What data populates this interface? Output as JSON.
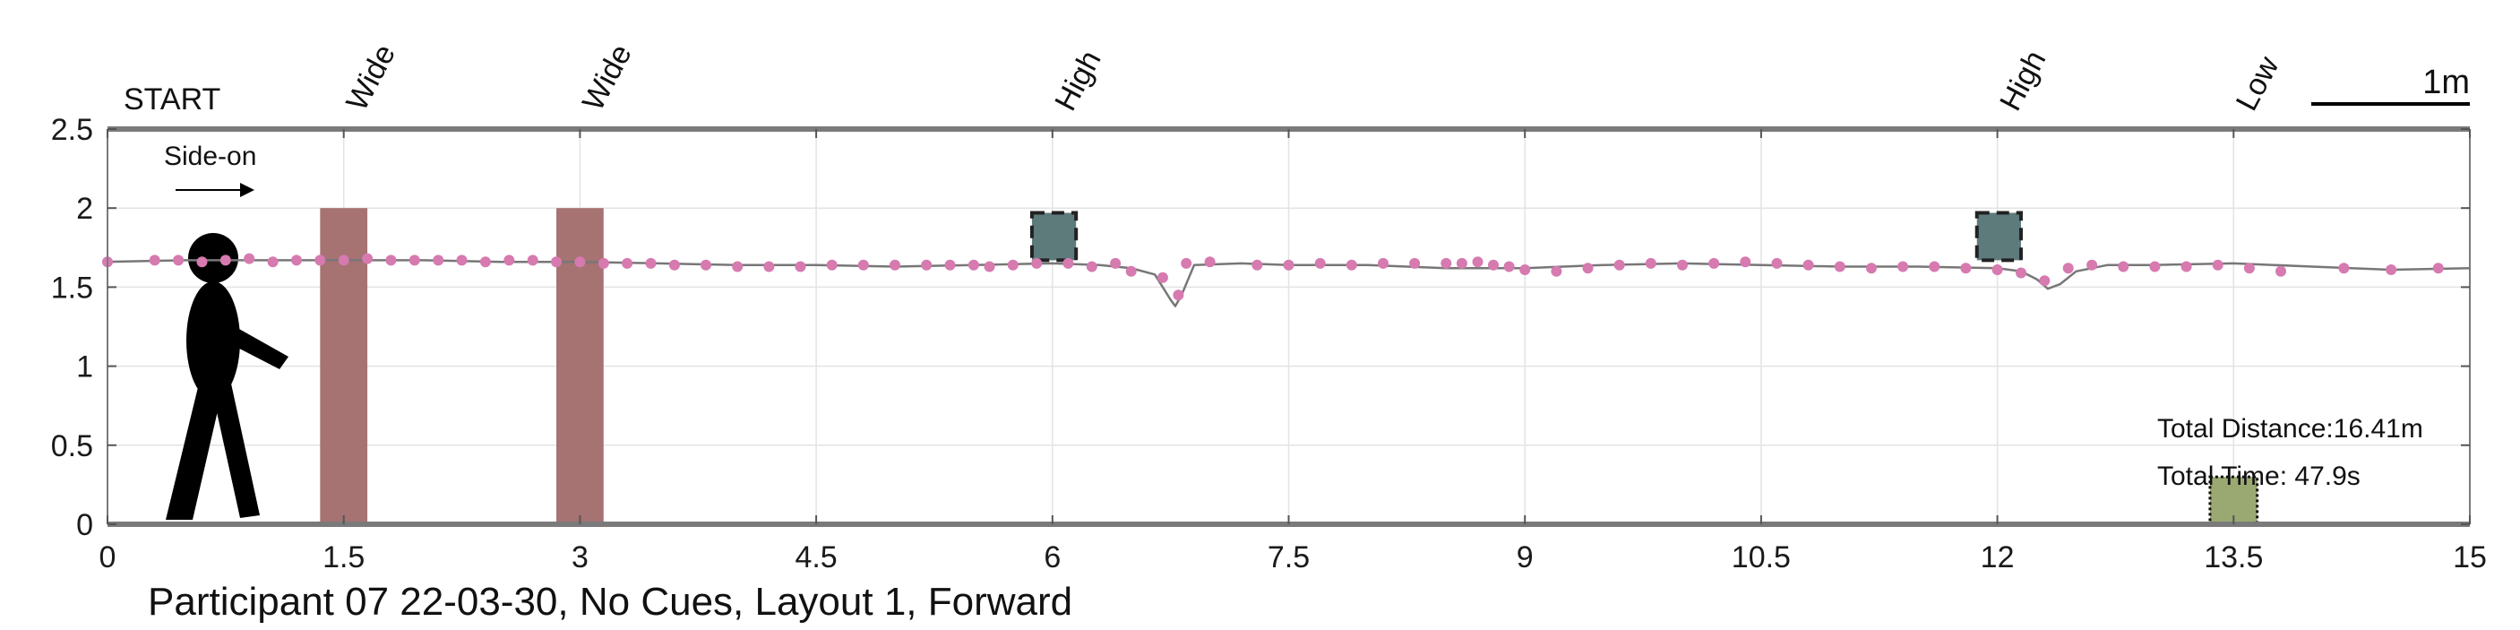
{
  "chart_data": {
    "type": "line",
    "title": "Participant 07 22-03-30, No Cues, Layout 1, Forward",
    "xlim": [
      0,
      15
    ],
    "ylim": [
      0,
      2.5
    ],
    "x_ticks": [
      0,
      1.5,
      3,
      4.5,
      6,
      7.5,
      9,
      10.5,
      12,
      13.5,
      15
    ],
    "x_tick_labels": [
      "0",
      "1.5",
      "3",
      "4.5",
      "6",
      "7.5",
      "9",
      "10.5",
      "12",
      "13.5",
      "15"
    ],
    "y_ticks": [
      0,
      0.5,
      1,
      1.5,
      2,
      2.5
    ],
    "y_tick_labels": [
      "0",
      "0.5",
      "1",
      "1.5",
      "2",
      "2.5"
    ],
    "grid": true,
    "start_label": "START",
    "direction_label": "Side-on",
    "scale_bar_label": "1m",
    "summary": {
      "distance": "Total Distance:16.41m",
      "time": "Total Time: 47.9s"
    },
    "obstacle_labels": [
      {
        "x": 1.5,
        "text": "Wide"
      },
      {
        "x": 3.0,
        "text": "Wide"
      },
      {
        "x": 6.0,
        "text": "High"
      },
      {
        "x": 12.0,
        "text": "High"
      },
      {
        "x": 13.5,
        "text": "Low"
      }
    ],
    "obstacles": [
      {
        "kind": "wide",
        "x0": 1.35,
        "x1": 1.65,
        "y0": 0,
        "y1": 2.0,
        "color": "#a67272"
      },
      {
        "kind": "wide",
        "x0": 2.85,
        "x1": 3.15,
        "y0": 0,
        "y1": 2.0,
        "color": "#a67272"
      },
      {
        "kind": "high",
        "x0": 5.87,
        "x1": 6.15,
        "y0": 1.67,
        "y1": 1.97,
        "color": "#5e7b7c"
      },
      {
        "kind": "high",
        "x0": 11.87,
        "x1": 12.15,
        "y0": 1.67,
        "y1": 1.97,
        "color": "#5e7b7c"
      },
      {
        "kind": "low",
        "x0": 13.35,
        "x1": 13.65,
        "y0": 0,
        "y1": 0.3,
        "color": "#9aa872"
      }
    ],
    "series": [
      {
        "style": "line",
        "color": "#777777",
        "x": [
          0,
          0.5,
          1.0,
          1.5,
          2.0,
          2.5,
          3.0,
          3.5,
          4.0,
          4.5,
          5.0,
          5.5,
          6.0,
          6.3,
          6.5,
          6.65,
          6.7,
          6.75,
          6.78,
          6.82,
          6.9,
          7.2,
          7.5,
          8.0,
          8.5,
          9.0,
          9.5,
          10.0,
          10.5,
          11.0,
          11.5,
          12.0,
          12.15,
          12.25,
          12.32,
          12.4,
          12.5,
          12.7,
          13.0,
          13.5,
          14.0,
          14.5,
          15.0
        ],
        "y": [
          1.66,
          1.67,
          1.67,
          1.67,
          1.67,
          1.66,
          1.66,
          1.65,
          1.64,
          1.64,
          1.63,
          1.64,
          1.65,
          1.64,
          1.62,
          1.58,
          1.5,
          1.42,
          1.38,
          1.45,
          1.64,
          1.65,
          1.64,
          1.64,
          1.62,
          1.62,
          1.64,
          1.65,
          1.64,
          1.63,
          1.63,
          1.62,
          1.6,
          1.55,
          1.49,
          1.52,
          1.6,
          1.64,
          1.64,
          1.65,
          1.63,
          1.61,
          1.62
        ]
      },
      {
        "style": "points",
        "color": "#d67ab0",
        "x": [
          0.0,
          0.3,
          0.45,
          0.6,
          0.75,
          0.9,
          1.05,
          1.2,
          1.35,
          1.5,
          1.65,
          1.8,
          1.95,
          2.1,
          2.25,
          2.4,
          2.55,
          2.7,
          2.85,
          3.0,
          3.15,
          3.3,
          3.45,
          3.6,
          3.8,
          4.0,
          4.2,
          4.4,
          4.6,
          4.8,
          5.0,
          5.2,
          5.35,
          5.5,
          5.6,
          5.75,
          5.9,
          6.1,
          6.25,
          6.4,
          6.5,
          6.7,
          6.8,
          6.85,
          7.0,
          7.3,
          7.5,
          7.7,
          7.9,
          8.1,
          8.3,
          8.5,
          8.6,
          8.7,
          8.8,
          8.9,
          9.0,
          9.2,
          9.4,
          9.6,
          9.8,
          10.0,
          10.2,
          10.4,
          10.6,
          10.8,
          11.0,
          11.2,
          11.4,
          11.6,
          11.8,
          12.0,
          12.15,
          12.3,
          12.45,
          12.6,
          12.8,
          13.0,
          13.2,
          13.4,
          13.6,
          13.8,
          14.2,
          14.5,
          14.8
        ],
        "y": [
          1.66,
          1.67,
          1.67,
          1.66,
          1.67,
          1.68,
          1.66,
          1.67,
          1.67,
          1.67,
          1.68,
          1.67,
          1.67,
          1.67,
          1.67,
          1.66,
          1.67,
          1.67,
          1.66,
          1.66,
          1.65,
          1.65,
          1.65,
          1.64,
          1.64,
          1.63,
          1.63,
          1.63,
          1.64,
          1.64,
          1.64,
          1.64,
          1.64,
          1.64,
          1.63,
          1.64,
          1.65,
          1.65,
          1.63,
          1.65,
          1.6,
          1.56,
          1.45,
          1.65,
          1.66,
          1.64,
          1.64,
          1.65,
          1.64,
          1.65,
          1.65,
          1.65,
          1.65,
          1.66,
          1.64,
          1.63,
          1.61,
          1.6,
          1.62,
          1.64,
          1.65,
          1.64,
          1.65,
          1.66,
          1.65,
          1.64,
          1.63,
          1.62,
          1.63,
          1.63,
          1.62,
          1.61,
          1.59,
          1.54,
          1.62,
          1.64,
          1.63,
          1.63,
          1.63,
          1.64,
          1.62,
          1.6,
          1.62,
          1.61,
          1.62
        ]
      }
    ]
  }
}
